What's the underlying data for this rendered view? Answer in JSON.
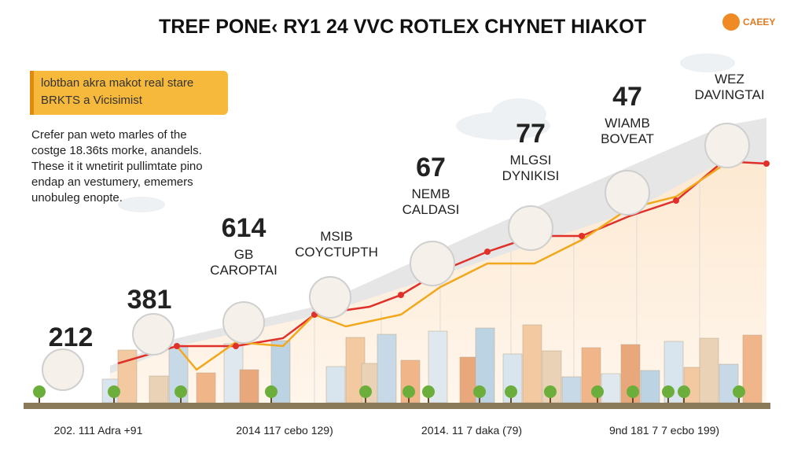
{
  "header": {
    "title": "TREF PONE‹ RY1 24 VVC ROTLEX CHYNET HIAKOT",
    "logo": "CAEEY"
  },
  "callout": {
    "lines": [
      "lobtban akra makot real stare",
      "BRKTS a Vicisimist"
    ]
  },
  "paragraph": {
    "lines": [
      "Crefer pan weto marles of the",
      "costge 18.36ts morke, anandels.",
      "These it it wnetirit pullimtate pino",
      "endap an vestumery, ememers",
      "unobuleg enopte."
    ]
  },
  "annotations": [
    {
      "lines": [
        "212"
      ]
    },
    {
      "lines": [
        "381"
      ]
    },
    {
      "lines": [
        "614",
        "GB",
        "CAROPTAI"
      ]
    },
    {
      "lines": [
        "MSIB",
        "COYCTUPTH"
      ]
    },
    {
      "lines": [
        "67",
        "NEMB",
        "CALDASI"
      ]
    },
    {
      "lines": [
        "77",
        "MLGSI",
        "DYNIKISI"
      ]
    },
    {
      "lines": [
        "47",
        "WIAMB",
        "BOVEAT"
      ]
    },
    {
      "lines": [
        "WEZ",
        "DAVINGTAI"
      ]
    }
  ],
  "x_labels": [
    "202. 111 Adra +91",
    "2014 117 cebo 129)",
    "2014. 11 7 daka (79)",
    "9nd 181 7 7 ecbo 199)"
  ]
}
